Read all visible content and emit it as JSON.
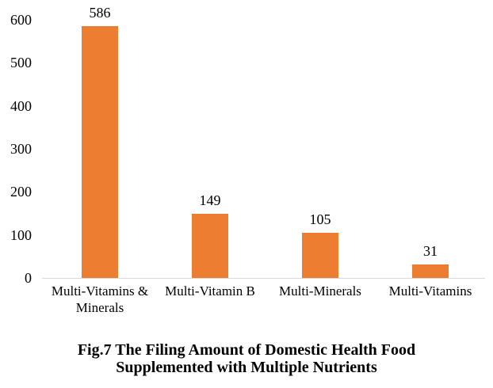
{
  "chart_data": {
    "type": "bar",
    "title": "Fig.7 The Filing Amount of Domestic Health Food Supplemented with Multiple Nutrients",
    "categories": [
      "Multi-Vitamins & Minerals",
      "Multi-Vitamin B",
      "Multi-Minerals",
      "Multi-Vitamins"
    ],
    "values": [
      586,
      149,
      105,
      31
    ],
    "data_labels_shown": true,
    "xlabel": "",
    "ylabel": "",
    "ylim": [
      0,
      600
    ],
    "yticks": [
      0,
      100,
      200,
      300,
      400,
      500,
      600
    ],
    "grid": false,
    "legend_position": "none",
    "bar_color": "#ED7D31",
    "axis_line_color": "#D9D9D9",
    "text_color": "#000000"
  },
  "caption": {
    "line1": "Fig.7 The Filing Amount of Domestic Health Food",
    "line2": "Supplemented with Multiple Nutrients"
  }
}
